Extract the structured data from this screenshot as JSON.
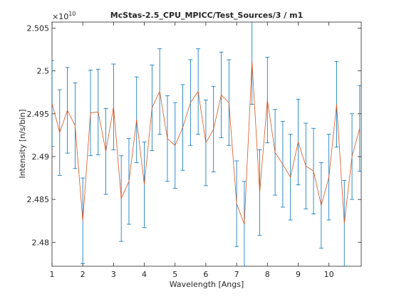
{
  "chart_data": {
    "type": "line",
    "title": "McStas-2.5_CPU_MPICC/Test_Sources/3 / m1",
    "xlabel": "Wavelength [Angs]",
    "ylabel": "Intensity [n/s/bin]",
    "y_exponent_label": "×10",
    "y_exponent_power": "10",
    "xlim": [
      1,
      11.05
    ],
    "ylim": [
      2.4772,
      2.5057
    ],
    "grid": false,
    "legend": "none",
    "x_ticks": [
      1,
      2,
      3,
      4,
      5,
      6,
      7,
      8,
      9,
      10
    ],
    "x_tick_labels": [
      "1",
      "2",
      "3",
      "4",
      "5",
      "6",
      "7",
      "8",
      "9",
      "10"
    ],
    "y_ticks": [
      2.48,
      2.485,
      2.49,
      2.495,
      2.5,
      2.505
    ],
    "y_tick_labels": [
      "2.48",
      "2.485",
      "2.49",
      "2.495",
      "2.5",
      "2.505"
    ],
    "colors": {
      "errorbar": "#0072bd",
      "line": "#d95319"
    },
    "x": [
      1.0,
      1.25,
      1.5,
      1.75,
      2.0,
      2.25,
      2.5,
      2.75,
      3.0,
      3.25,
      3.5,
      3.75,
      4.0,
      4.25,
      4.5,
      4.75,
      5.0,
      5.25,
      5.5,
      5.75,
      6.0,
      6.25,
      6.5,
      6.75,
      7.0,
      7.25,
      7.5,
      7.75,
      8.0,
      8.25,
      8.5,
      8.75,
      9.0,
      9.25,
      9.5,
      9.75,
      10.0,
      10.25,
      10.5,
      10.75,
      11.0
    ],
    "series": [
      {
        "values": [
          2.4962,
          2.4928,
          2.4954,
          2.4936,
          2.4825,
          2.4951,
          2.4952,
          2.4906,
          2.4958,
          2.4851,
          2.4871,
          2.4943,
          2.4867,
          2.4957,
          2.4976,
          2.4921,
          2.4913,
          2.4934,
          2.4963,
          2.4976,
          2.4916,
          2.4932,
          2.4972,
          2.4963,
          2.4845,
          2.4821,
          2.5011,
          2.4858,
          2.4966,
          2.4905,
          2.4891,
          2.4876,
          2.4917,
          2.4889,
          2.4883,
          2.4843,
          2.4876,
          2.4961,
          2.4822,
          2.49,
          2.4933
        ],
        "errors": [
          0.005,
          0.005,
          0.005,
          0.005,
          0.005,
          0.005,
          0.005,
          0.005,
          0.005,
          0.005,
          0.005,
          0.005,
          0.005,
          0.005,
          0.005,
          0.005,
          0.005,
          0.005,
          0.005,
          0.005,
          0.005,
          0.005,
          0.005,
          0.005,
          0.005,
          0.005,
          0.005,
          0.005,
          0.005,
          0.005,
          0.005,
          0.005,
          0.005,
          0.005,
          0.005,
          0.005,
          0.005,
          0.005,
          0.005,
          0.005,
          0.005
        ]
      }
    ]
  }
}
